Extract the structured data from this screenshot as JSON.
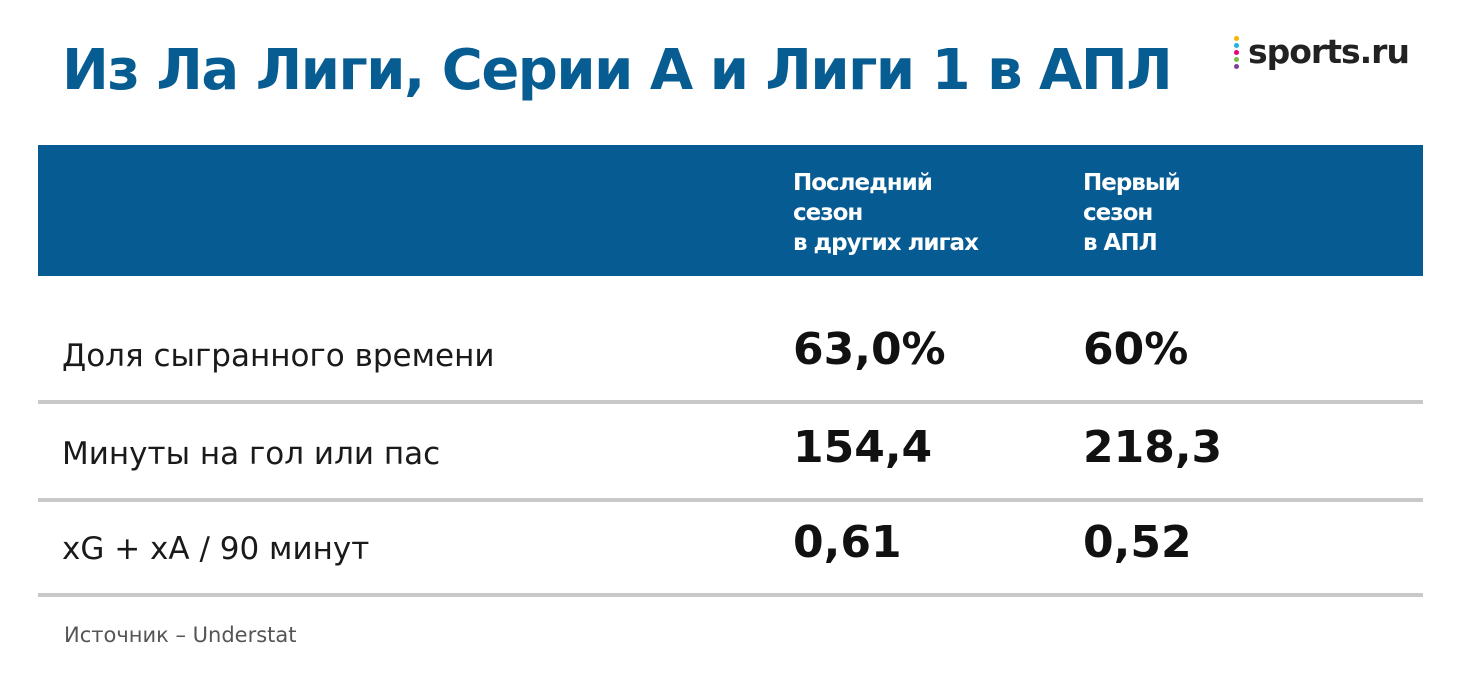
{
  "header": {
    "title": "Из Ла Лиги, Серии А и Лиги 1 в АПЛ",
    "logo": "sports.ru"
  },
  "table": {
    "columns": [
      [
        "Последний",
        "сезон",
        "в других лигах"
      ],
      [
        "Первый",
        "сезон",
        "в АПЛ"
      ]
    ],
    "rows": [
      [
        "Доля сыгранного времени",
        "63,0%",
        "60%"
      ],
      [
        "Минуты на гол или пас",
        "154,4",
        "218,3"
      ],
      [
        "xG + xA / 90 минут",
        "0,61",
        "0,52"
      ]
    ]
  },
  "source": "Источник – Understat"
}
